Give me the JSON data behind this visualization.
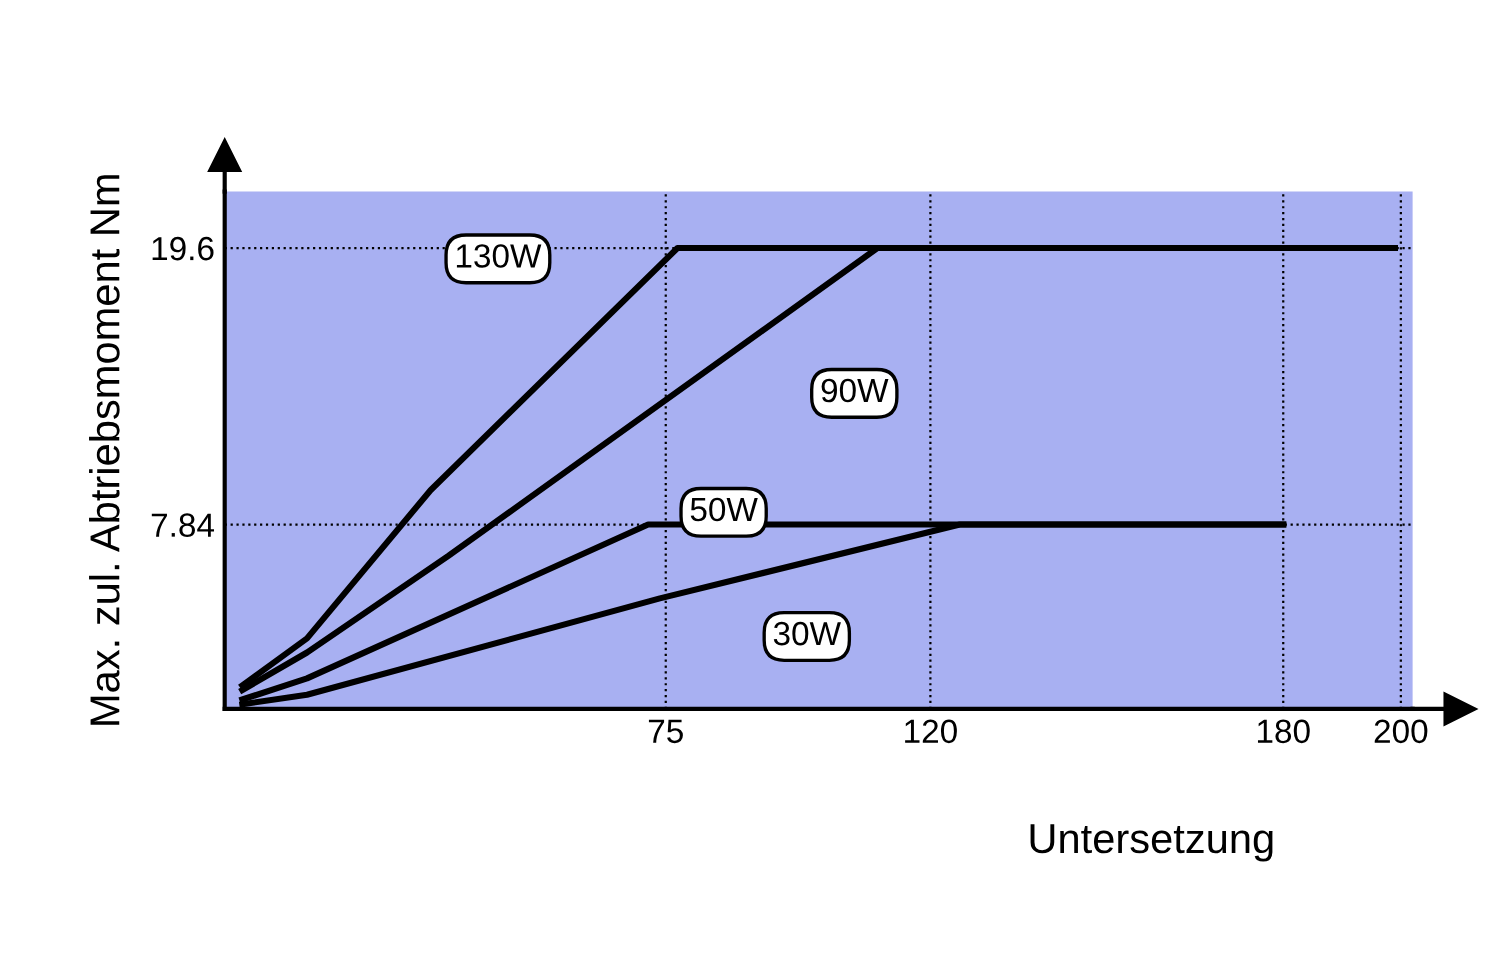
{
  "chart_data": {
    "type": "line",
    "xlabel": "Untersetzung",
    "ylabel": "Max. zul. Abtriebsmoment Nm",
    "xlim": [
      0,
      202
    ],
    "xticks": [
      75,
      120,
      180,
      200
    ],
    "ylim": [
      0,
      22
    ],
    "yticks": [
      7.84,
      19.6
    ],
    "grid": true,
    "line_style": "solid",
    "marker": "none",
    "series": [
      {
        "name": "130W",
        "color": "#000000",
        "x": [
          3,
          14,
          35,
          77,
          199
        ],
        "values": [
          1.0,
          3.0,
          9.3,
          19.6,
          19.6
        ]
      },
      {
        "name": "90W",
        "color": "#000000",
        "x": [
          3,
          14,
          38,
          111,
          199
        ],
        "values": [
          0.8,
          2.4,
          6.5,
          19.6,
          19.6
        ]
      },
      {
        "name": "50W",
        "color": "#000000",
        "x": [
          3,
          14,
          72,
          180
        ],
        "values": [
          0.4,
          1.3,
          7.84,
          7.84
        ]
      },
      {
        "name": "30W",
        "color": "#000000",
        "x": [
          3,
          14,
          74,
          125,
          180
        ],
        "values": [
          0.2,
          0.6,
          4.7,
          7.84,
          7.84
        ]
      }
    ]
  }
}
